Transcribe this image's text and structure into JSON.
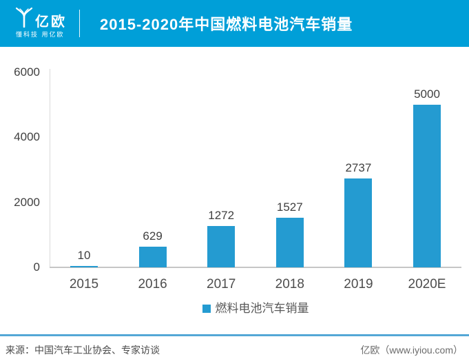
{
  "header": {
    "logo": {
      "name": "亿欧",
      "tagline": "懂科技 用亿欧"
    },
    "title": "2015-2020年中国燃料电池汽车销量",
    "band_color": "#009FD8"
  },
  "chart_data": {
    "type": "bar",
    "title": "2015-2020年中国燃料电池汽车销量",
    "categories": [
      "2015",
      "2016",
      "2017",
      "2018",
      "2019",
      "2020E"
    ],
    "values": [
      10,
      629,
      1272,
      1527,
      2737,
      5000
    ],
    "series_name": "燃料电池汽车销量",
    "ylim": [
      0,
      6000
    ],
    "yticks": [
      0,
      2000,
      4000,
      6000
    ],
    "bar_color": "#249BD1",
    "grid": false,
    "data_labels": true,
    "legend_position": "bottom"
  },
  "legend": {
    "label": "燃料电池汽车销量",
    "swatch_color": "#249BD1"
  },
  "footer": {
    "source": "来源：中国汽车工业协会、专家访谈",
    "brand": "亿欧（www.iyiou.com）"
  }
}
